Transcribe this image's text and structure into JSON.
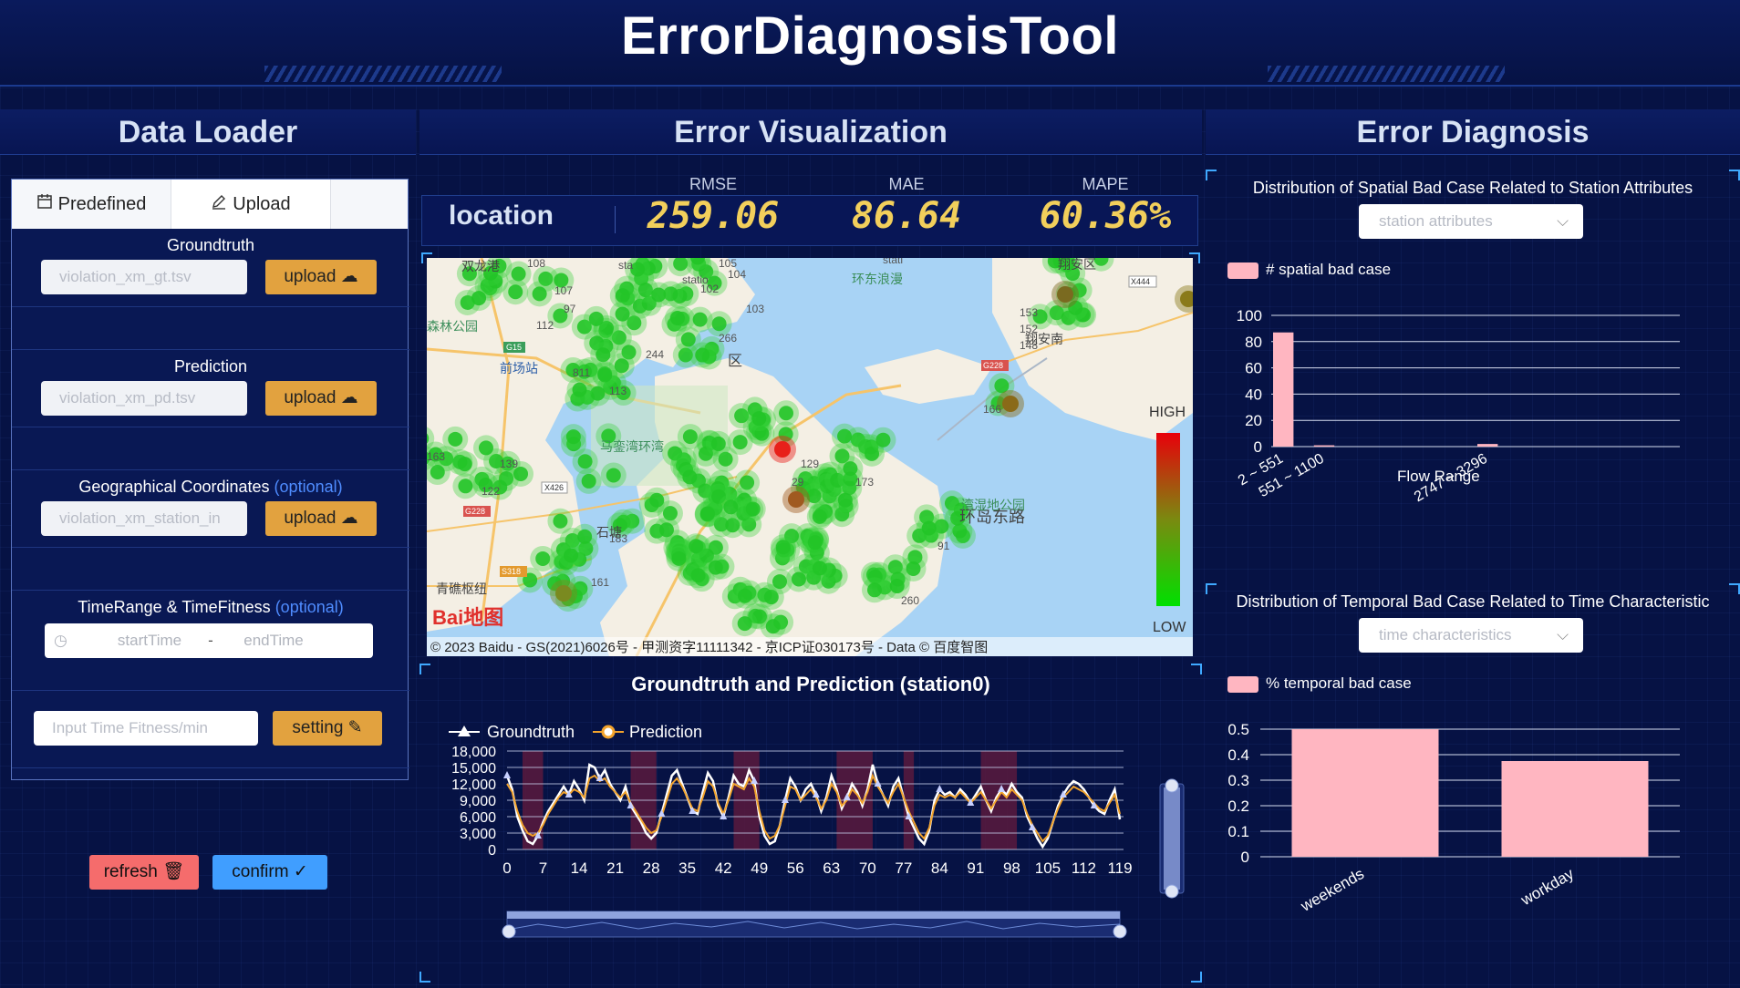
{
  "app_title": "ErrorDiagnosisTool",
  "sections": {
    "loader": "Data Loader",
    "visualization": "Error Visualization",
    "diagnosis": "Error Diagnosis"
  },
  "loader": {
    "tabs": [
      {
        "label": "Predefined",
        "icon": "calendar-icon"
      },
      {
        "label": "Upload",
        "icon": "pencil-icon"
      }
    ],
    "groundtruth": {
      "label": "Groundtruth",
      "placeholder": "violation_xm_gt.tsv",
      "button": "upload"
    },
    "prediction": {
      "label": "Prediction",
      "placeholder": "violation_xm_pd.tsv",
      "button": "upload"
    },
    "geo": {
      "label": "Geographical Coordinates",
      "optional": "(optional)",
      "placeholder": "violation_xm_station_in",
      "button": "upload"
    },
    "time": {
      "label": "TimeRange & TimeFitness",
      "optional": "(optional)",
      "start": "startTime",
      "sep": "-",
      "end": "endTime"
    },
    "fitness": {
      "placeholder": "Input Time Fitness/min",
      "button": "setting"
    },
    "refresh": "refresh",
    "confirm": "confirm"
  },
  "kpi": {
    "location": "location",
    "items": [
      {
        "label": "RMSE",
        "value": "259.06"
      },
      {
        "label": "MAE",
        "value": "86.64"
      },
      {
        "label": "MAPE",
        "value": "60.36%"
      }
    ]
  },
  "map": {
    "legend_high": "HIGH",
    "legend_low": "LOW",
    "attribution": "© 2023 Baidu - GS(2021)6026号 - 甲测资字11111342 - 京ICP证030173号 - Data © 百度智图",
    "logo": "Bai地图",
    "places": [
      "双龙港",
      "环东浪漫",
      "翔安区",
      "森林公园",
      "前场站",
      "马銮湾环湾",
      "石塘",
      "青礁枢纽",
      "翔安南",
      "环岛东路",
      "湾湿地公园",
      "区"
    ],
    "highway_shields": [
      "G15",
      "X426",
      "G228",
      "S318",
      "G228",
      "X444"
    ],
    "station_labels": [
      "sta",
      "statio",
      "stati",
      "105",
      "104",
      "102",
      "107",
      "103",
      "97",
      "112",
      "266",
      "811",
      "113",
      "244",
      "166",
      "153",
      "152",
      "148",
      "173",
      "129",
      "139",
      "122",
      "163",
      "161",
      "183",
      "91",
      "260",
      "29",
      "108"
    ]
  },
  "timeseries": {
    "title": "Groundtruth and Prediction (station0)",
    "legend": [
      "Groundtruth",
      "Prediction"
    ]
  },
  "chart_data": [
    {
      "type": "line",
      "title": "Groundtruth and Prediction (station0)",
      "x_ticks": [
        0,
        7,
        14,
        21,
        28,
        35,
        42,
        49,
        56,
        63,
        70,
        77,
        84,
        91,
        98,
        105,
        112,
        119
      ],
      "ylim": [
        0,
        18000
      ],
      "y_ticks": [
        "18,000",
        "15,000",
        "12,000",
        "9,000",
        "6,000",
        "3,000",
        "0"
      ],
      "series": [
        {
          "name": "Groundtruth",
          "color": "#ffffff",
          "values": [
            13500,
            11000,
            6000,
            3500,
            1500,
            1000,
            2500,
            5000,
            7000,
            8500,
            10000,
            11500,
            10000,
            12500,
            11000,
            9000,
            15500,
            15000,
            13000,
            14500,
            12000,
            10500,
            9000,
            11500,
            8000,
            6500,
            5000,
            3000,
            2000,
            3000,
            6500,
            10000,
            13500,
            14500,
            12000,
            9500,
            7000,
            6500,
            10500,
            14000,
            12500,
            8000,
            6000,
            9500,
            13500,
            12000,
            11500,
            14500,
            12500,
            6000,
            2500,
            1000,
            1500,
            4500,
            9000,
            13000,
            11500,
            9000,
            11000,
            12000,
            10000,
            7000,
            9500,
            13500,
            11000,
            7500,
            9500,
            12000,
            10500,
            8000,
            11000,
            15500,
            12000,
            10000,
            8000,
            11500,
            13000,
            9500,
            6000,
            4000,
            2000,
            1000,
            3500,
            9000,
            11000,
            10000,
            10500,
            9500,
            11000,
            10000,
            8500,
            10000,
            11500,
            9000,
            7000,
            9500,
            11000,
            10000,
            12000,
            10500,
            9500,
            6000,
            4000,
            2000,
            500,
            2000,
            5000,
            8000,
            10000,
            11500,
            12500,
            12000,
            11000,
            9500,
            8000,
            7000,
            6500,
            9000,
            11000,
            5500
          ]
        },
        {
          "name": "Prediction",
          "color": "#f2a32c",
          "values": [
            12000,
            10500,
            7000,
            4500,
            3000,
            2500,
            3000,
            4500,
            6500,
            8000,
            9500,
            10500,
            10000,
            11000,
            10500,
            9500,
            13000,
            13500,
            12500,
            13000,
            11500,
            10500,
            9500,
            10500,
            8500,
            7000,
            5500,
            4000,
            3000,
            3500,
            6000,
            9000,
            12000,
            13000,
            11500,
            9500,
            7500,
            7000,
            9500,
            12500,
            11500,
            8500,
            6500,
            9000,
            12000,
            11500,
            11000,
            13000,
            11500,
            7000,
            3500,
            2000,
            2500,
            4500,
            8000,
            11500,
            11000,
            9000,
            10000,
            11000,
            9500,
            7500,
            9000,
            12000,
            10500,
            8000,
            9000,
            11000,
            10000,
            8500,
            10500,
            13500,
            11500,
            10000,
            8500,
            10500,
            12000,
            9500,
            7000,
            5000,
            3000,
            2000,
            4000,
            8000,
            10000,
            9500,
            10000,
            9500,
            10500,
            9500,
            8500,
            9500,
            10500,
            9000,
            7500,
            9000,
            10500,
            9500,
            11000,
            10000,
            9000,
            6500,
            4500,
            3000,
            1500,
            2500,
            5000,
            7500,
            9500,
            10500,
            11500,
            11000,
            10500,
            9500,
            8500,
            7500,
            7000,
            8500,
            10000,
            6500
          ]
        }
      ],
      "highlight_ranges": [
        [
          3,
          7
        ],
        [
          24,
          29
        ],
        [
          44,
          49
        ],
        [
          64,
          71
        ],
        [
          77,
          79
        ],
        [
          92,
          99
        ]
      ]
    },
    {
      "type": "bar",
      "title": "Distribution of Spatial Bad Case Related to Station Attributes",
      "xlabel": "Flow Range",
      "categories": [
        "2 ~ 551",
        "551 ~ 1100",
        "",
        "",
        "",
        "2747 ~ 3296",
        "",
        "",
        "",
        ""
      ],
      "series": [
        {
          "name": "# spatial bad case",
          "values": [
            87,
            1,
            0,
            0,
            0,
            2,
            0,
            0,
            0,
            0
          ]
        }
      ],
      "ylim": [
        0,
        100
      ],
      "y_ticks": [
        0,
        20,
        40,
        60,
        80,
        100
      ]
    },
    {
      "type": "bar",
      "title": "Distribution of Temporal Bad Case Related to Time Characteristic",
      "categories": [
        "weekends",
        "workday"
      ],
      "series": [
        {
          "name": "% temporal bad case",
          "values": [
            0.5,
            0.375
          ]
        }
      ],
      "ylim": [
        0,
        0.5
      ],
      "y_ticks": [
        0,
        0.1,
        0.2,
        0.3,
        0.4,
        0.5
      ]
    }
  ],
  "diagnosis": {
    "spatial": {
      "title": "Distribution of Spatial Bad Case Related to Station Attributes",
      "dropdown": "station attributes",
      "legend": "# spatial bad case",
      "xlabel": "Flow Range"
    },
    "temporal": {
      "title": "Distribution of Temporal Bad Case Related to Time Characteristic",
      "dropdown": "time characteristics",
      "legend": "% temporal bad case"
    }
  },
  "colors": {
    "background": "#061244",
    "accent_gold": "#e2a23f",
    "refresh_red": "#f56c6c",
    "confirm_blue": "#409eff",
    "bar_pink": "#ffb6c1",
    "kpi_yellow": "#f2cf5b"
  }
}
